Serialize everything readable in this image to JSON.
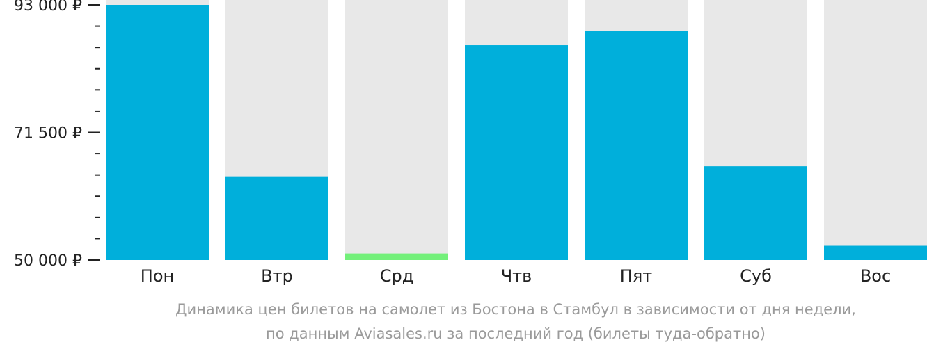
{
  "chart_data": {
    "type": "bar",
    "categories": [
      "Пон",
      "Втр",
      "Срд",
      "Чтв",
      "Пят",
      "Суб",
      "Вос"
    ],
    "values": [
      93000,
      64100,
      51100,
      86200,
      88600,
      65800,
      52400
    ],
    "ylim": [
      50000,
      93000
    ],
    "y_ticks": [
      {
        "value": 93000,
        "label": "93 000 ₽"
      },
      {
        "value": 71500,
        "label": "71 500 ₽"
      },
      {
        "value": 50000,
        "label": "50 000 ₽"
      }
    ],
    "minor_tick_step": 3583.33,
    "highlight_index": 2,
    "colors": {
      "bar": "#00afdb",
      "highlight": "#73f07a",
      "track": "#e8e8e8",
      "axis": "#222222"
    }
  },
  "caption": {
    "line1": "Динамика цен билетов на самолет из Бостона в Стамбул в зависимости от дня недели,",
    "line2": "по данным Aviasales.ru за последний год (билеты туда-обратно)"
  }
}
